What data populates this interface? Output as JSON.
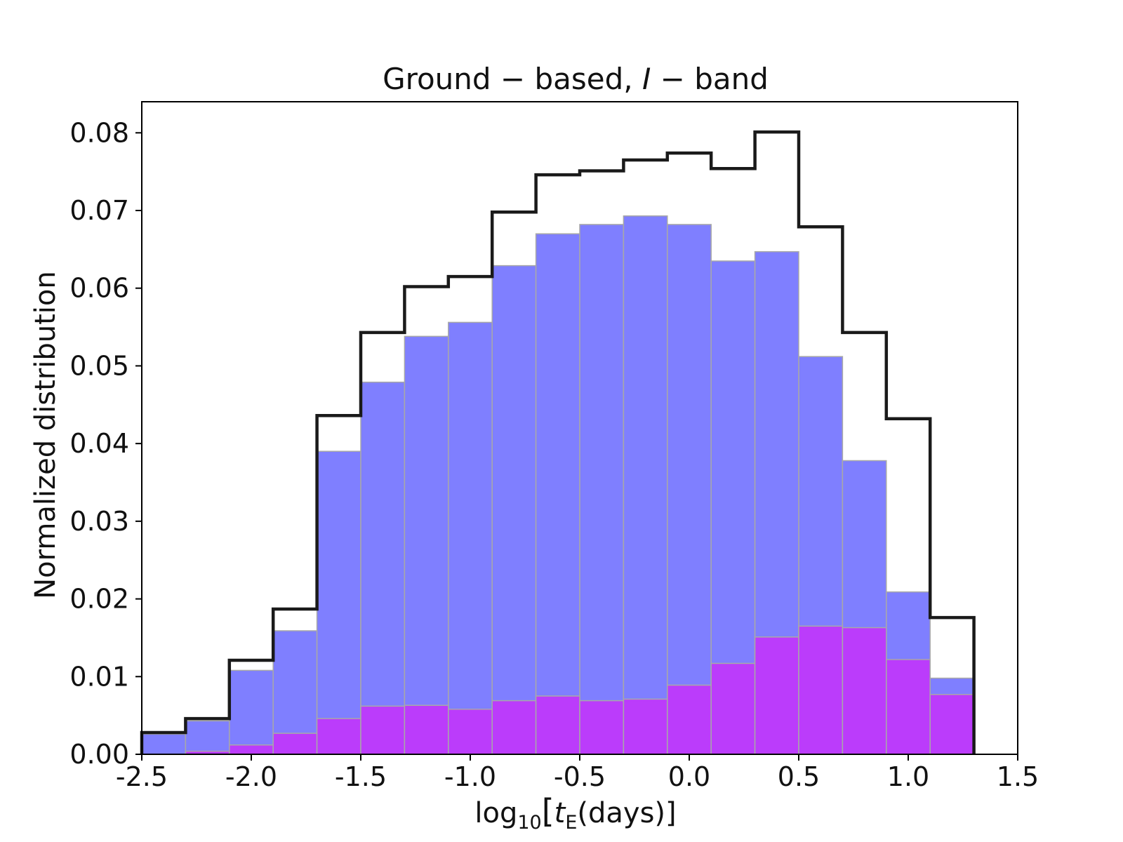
{
  "chart_data": {
    "type": "bar",
    "title": "Ground − based, I − band",
    "title_parts": {
      "pre": "Ground − based, ",
      "italic": "I",
      "post": " − band"
    },
    "xlabel": "log10[tE(days)]",
    "xlabel_parts": {
      "log": "log",
      "sub": "10",
      "open": "[",
      "var": "t",
      "var_sub": "E",
      "rest": "(days)]"
    },
    "ylabel": "Normalized distribution",
    "xlim": [
      -2.5,
      1.5
    ],
    "ylim": [
      0.0,
      0.084
    ],
    "x_ticks": [
      -2.5,
      -2.0,
      -1.5,
      -1.0,
      -0.5,
      0.0,
      0.5,
      1.0,
      1.5
    ],
    "x_tick_labels": [
      "-2.5",
      "-2.0",
      "-1.5",
      "-1.0",
      "-0.5",
      "0.0",
      "0.5",
      "1.0",
      "1.5"
    ],
    "y_ticks": [
      0.0,
      0.01,
      0.02,
      0.03,
      0.04,
      0.05,
      0.06,
      0.07,
      0.08
    ],
    "y_tick_labels": [
      "0.00",
      "0.01",
      "0.02",
      "0.03",
      "0.04",
      "0.05",
      "0.06",
      "0.07",
      "0.08"
    ],
    "bin_edges": [
      -2.5,
      -2.3,
      -2.1,
      -1.9,
      -1.7,
      -1.5,
      -1.3,
      -1.1,
      -0.9,
      -0.7,
      -0.5,
      -0.3,
      -0.1,
      0.1,
      0.3,
      0.5,
      0.7,
      0.9,
      1.1,
      1.3
    ],
    "series": [
      {
        "name": "blue",
        "kind": "filled",
        "color": "#7f7fff",
        "values": [
          0.0026,
          0.0043,
          0.0108,
          0.0159,
          0.039,
          0.0479,
          0.0538,
          0.0556,
          0.0629,
          0.067,
          0.0682,
          0.0693,
          0.0682,
          0.0635,
          0.0647,
          0.0512,
          0.0378,
          0.0209,
          0.0098
        ]
      },
      {
        "name": "purple",
        "kind": "filled",
        "color": "#bb3cfb",
        "values": [
          0.0,
          0.0004,
          0.0012,
          0.0027,
          0.0046,
          0.0062,
          0.0063,
          0.0058,
          0.0069,
          0.0075,
          0.0069,
          0.0071,
          0.0089,
          0.0117,
          0.0151,
          0.0165,
          0.0163,
          0.0122,
          0.0077
        ]
      },
      {
        "name": "total",
        "kind": "step",
        "color": "#1a1a1a",
        "values": [
          0.0028,
          0.0046,
          0.0121,
          0.0187,
          0.0436,
          0.0543,
          0.0602,
          0.0615,
          0.0698,
          0.0746,
          0.0751,
          0.0765,
          0.0774,
          0.0754,
          0.0801,
          0.0679,
          0.0543,
          0.0432,
          0.0176
        ]
      }
    ]
  }
}
